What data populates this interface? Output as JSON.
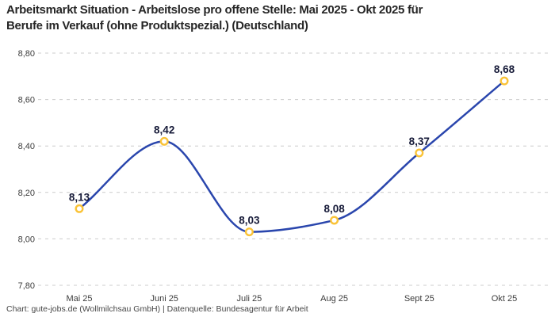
{
  "title": {
    "line1": "Arbeitsmarkt Situation - Arbeitslose pro offene Stelle: Mai 2025 - Okt 2025 für",
    "line2": "Berufe im Verkauf (ohne Produktspezial.) (Deutschland)"
  },
  "footer": {
    "credit": "Chart: gute-jobs.de (Wollmilchsau GmbH) | Datenquelle: Bundesagentur für Arbeit"
  },
  "chart_data": {
    "type": "line",
    "title": "Arbeitsmarkt Situation - Arbeitslose pro offene Stelle: Mai 2025 - Okt 2025 für Berufe im Verkauf (ohne Produktspezial.) (Deutschland)",
    "categories": [
      "Mai 25",
      "Juni 25",
      "Juli 25",
      "Aug 25",
      "Sept 25",
      "Okt 25"
    ],
    "values": [
      8.13,
      8.42,
      8.03,
      8.08,
      8.37,
      8.68
    ],
    "value_labels": [
      "8,13",
      "8,42",
      "8,03",
      "8,08",
      "8,37",
      "8,68"
    ],
    "xlabel": "",
    "ylabel": "",
    "ylim": [
      7.8,
      8.8
    ],
    "yticks": [
      {
        "value": 7.8,
        "label": "7,80"
      },
      {
        "value": 8.0,
        "label": "8,00"
      },
      {
        "value": 8.2,
        "label": "8,20"
      },
      {
        "value": 8.4,
        "label": "8,40"
      },
      {
        "value": 8.6,
        "label": "8,60"
      },
      {
        "value": 8.8,
        "label": "8,80"
      }
    ],
    "curve": "monotone",
    "grid": "horizontal-dashed",
    "legend": "none",
    "colors": {
      "line": "#2a46ad",
      "marker_ring": "#fac337",
      "marker_fill": "#ffffff",
      "value_label": "#161a38",
      "grid": "#cccccc",
      "axis_text": "#3c3c3c"
    }
  }
}
